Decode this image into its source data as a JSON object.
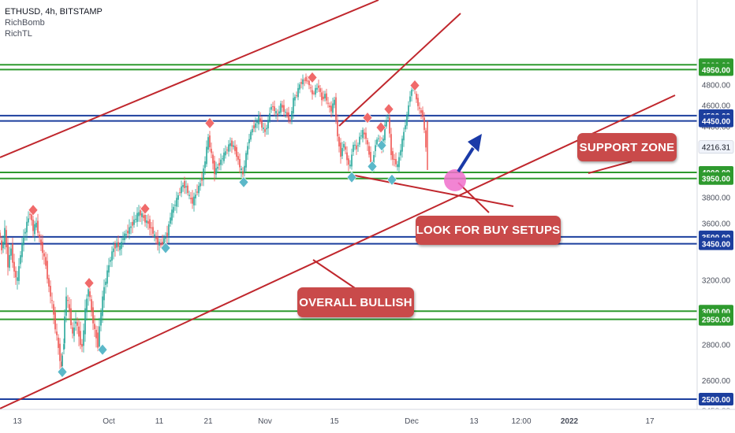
{
  "legend": {
    "symbol_line": "ETHUSD, 4h, BITSTAMP",
    "indicators": [
      "RichBomb",
      "RichTL"
    ]
  },
  "annotations": {
    "support_zone": "SUPPORT ZONE",
    "look_for_buy": "LOOK FOR BUY SETUPS",
    "overall_bullish": "OVERALL BULLISH"
  },
  "colors": {
    "up_candle": "#26a69a",
    "down_candle": "#ef5350",
    "support_level": "#2e9a2e",
    "blue_level": "#1c3f9e",
    "trendline": "#c0272d",
    "callout": "#c94a4a",
    "current_price_tag": "#f0f3fa",
    "pink_marker": "#f06ecb",
    "arrow": "#1a3aa8",
    "sell_marker": "#f06a6a",
    "buy_marker": "#5bb8c9"
  },
  "chart_data": {
    "type": "candlestick",
    "title": "ETHUSD, 4h, BITSTAMP",
    "y_axis": {
      "scale": "log",
      "ticks": [
        2600,
        2800,
        3200,
        3600,
        3800,
        4400,
        4600,
        4800
      ],
      "partial_label": "2450.00"
    },
    "x_axis": {
      "ticks": [
        "13",
        "Oct",
        "11",
        "21",
        "Nov",
        "15",
        "Dec",
        "13",
        "12:00",
        "2022",
        "17"
      ]
    },
    "horizontal_levels": [
      {
        "price": 5000.0,
        "label": "5000.00",
        "color": "green"
      },
      {
        "price": 4950.0,
        "label": "4950.00",
        "color": "green"
      },
      {
        "price": 4500.0,
        "label": "4500.00",
        "color": "blue"
      },
      {
        "price": 4450.0,
        "label": "4450.00",
        "color": "blue"
      },
      {
        "price": 4000.0,
        "label": "4000.00",
        "color": "green"
      },
      {
        "price": 3950.0,
        "label": "3950.00",
        "color": "green"
      },
      {
        "price": 3500.0,
        "label": "3500.00",
        "color": "blue"
      },
      {
        "price": 3450.0,
        "label": "3450.00",
        "color": "blue"
      },
      {
        "price": 3000.0,
        "label": "3000.00",
        "color": "green"
      },
      {
        "price": 2950.0,
        "label": "2950.00",
        "color": "green"
      },
      {
        "price": 2500.0,
        "label": "2500.00",
        "color": "blue"
      }
    ],
    "current_price": {
      "price": 4216.31,
      "label": "4216.31"
    },
    "price_path": [
      [
        0,
        3560
      ],
      [
        4,
        3400
      ],
      [
        8,
        3550
      ],
      [
        12,
        3300
      ],
      [
        16,
        3420
      ],
      [
        20,
        3250
      ],
      [
        24,
        3200
      ],
      [
        28,
        3380
      ],
      [
        32,
        3500
      ],
      [
        36,
        3600
      ],
      [
        40,
        3680
      ],
      [
        44,
        3550
      ],
      [
        48,
        3600
      ],
      [
        52,
        3480
      ],
      [
        56,
        3400
      ],
      [
        60,
        3300
      ],
      [
        64,
        3150
      ],
      [
        68,
        3050
      ],
      [
        72,
        2900
      ],
      [
        76,
        2780
      ],
      [
        79,
        2660
      ],
      [
        82,
        2820
      ],
      [
        86,
        3100
      ],
      [
        90,
        3000
      ],
      [
        94,
        2850
      ],
      [
        98,
        2950
      ],
      [
        102,
        2850
      ],
      [
        106,
        2780
      ],
      [
        110,
        3000
      ],
      [
        114,
        3150
      ],
      [
        118,
        3000
      ],
      [
        122,
        2880
      ],
      [
        126,
        2800
      ],
      [
        130,
        3000
      ],
      [
        134,
        3150
      ],
      [
        138,
        3250
      ],
      [
        142,
        3350
      ],
      [
        146,
        3420
      ],
      [
        150,
        3450
      ],
      [
        154,
        3420
      ],
      [
        158,
        3500
      ],
      [
        162,
        3520
      ],
      [
        166,
        3560
      ],
      [
        170,
        3600
      ],
      [
        174,
        3640
      ],
      [
        178,
        3680
      ],
      [
        182,
        3660
      ],
      [
        186,
        3620
      ],
      [
        190,
        3600
      ],
      [
        194,
        3560
      ],
      [
        198,
        3500
      ],
      [
        202,
        3460
      ],
      [
        206,
        3440
      ],
      [
        210,
        3480
      ],
      [
        214,
        3520
      ],
      [
        218,
        3650
      ],
      [
        222,
        3720
      ],
      [
        226,
        3780
      ],
      [
        230,
        3850
      ],
      [
        234,
        3900
      ],
      [
        238,
        3880
      ],
      [
        242,
        3800
      ],
      [
        246,
        3760
      ],
      [
        250,
        3820
      ],
      [
        254,
        3880
      ],
      [
        258,
        3950
      ],
      [
        262,
        4100
      ],
      [
        266,
        4300
      ],
      [
        270,
        4150
      ],
      [
        274,
        4000
      ],
      [
        278,
        4050
      ],
      [
        282,
        4100
      ],
      [
        286,
        4150
      ],
      [
        290,
        4200
      ],
      [
        294,
        4250
      ],
      [
        298,
        4220
      ],
      [
        302,
        4150
      ],
      [
        306,
        4050
      ],
      [
        310,
        3980
      ],
      [
        314,
        4150
      ],
      [
        318,
        4300
      ],
      [
        322,
        4380
      ],
      [
        326,
        4420
      ],
      [
        330,
        4480
      ],
      [
        334,
        4400
      ],
      [
        338,
        4350
      ],
      [
        342,
        4450
      ],
      [
        346,
        4600
      ],
      [
        350,
        4550
      ],
      [
        354,
        4500
      ],
      [
        358,
        4600
      ],
      [
        362,
        4550
      ],
      [
        366,
        4500
      ],
      [
        370,
        4450
      ],
      [
        374,
        4650
      ],
      [
        378,
        4700
      ],
      [
        382,
        4800
      ],
      [
        386,
        4840
      ],
      [
        390,
        4850
      ],
      [
        394,
        4800
      ],
      [
        398,
        4700
      ],
      [
        402,
        4750
      ],
      [
        406,
        4780
      ],
      [
        410,
        4650
      ],
      [
        414,
        4700
      ],
      [
        418,
        4600
      ],
      [
        422,
        4550
      ],
      [
        426,
        4650
      ],
      [
        430,
        4300
      ],
      [
        434,
        4150
      ],
      [
        438,
        4250
      ],
      [
        442,
        4100
      ],
      [
        446,
        4050
      ],
      [
        450,
        4250
      ],
      [
        454,
        4200
      ],
      [
        458,
        4300
      ],
      [
        462,
        4350
      ],
      [
        466,
        4300
      ],
      [
        470,
        4150
      ],
      [
        474,
        4050
      ],
      [
        478,
        4250
      ],
      [
        482,
        4300
      ],
      [
        486,
        4200
      ],
      [
        490,
        4400
      ],
      [
        494,
        4500
      ],
      [
        498,
        4150
      ],
      [
        502,
        4100
      ],
      [
        506,
        4050
      ],
      [
        510,
        4200
      ],
      [
        514,
        4350
      ],
      [
        518,
        4500
      ],
      [
        522,
        4700
      ],
      [
        526,
        4780
      ],
      [
        530,
        4650
      ],
      [
        534,
        4550
      ],
      [
        538,
        4500
      ],
      [
        542,
        4216
      ]
    ],
    "sell_markers": [
      [
        42,
        3700
      ],
      [
        113,
        3180
      ],
      [
        184,
        3710
      ],
      [
        266,
        4430
      ],
      [
        396,
        4870
      ],
      [
        466,
        4480
      ],
      [
        483,
        4390
      ],
      [
        493,
        4560
      ],
      [
        526,
        4790
      ]
    ],
    "buy_markers": [
      [
        79,
        2645
      ],
      [
        130,
        2770
      ],
      [
        210,
        3420
      ],
      [
        309,
        3920
      ],
      [
        446,
        3960
      ],
      [
        472,
        4050
      ],
      [
        484,
        4230
      ],
      [
        497,
        3940
      ]
    ]
  }
}
